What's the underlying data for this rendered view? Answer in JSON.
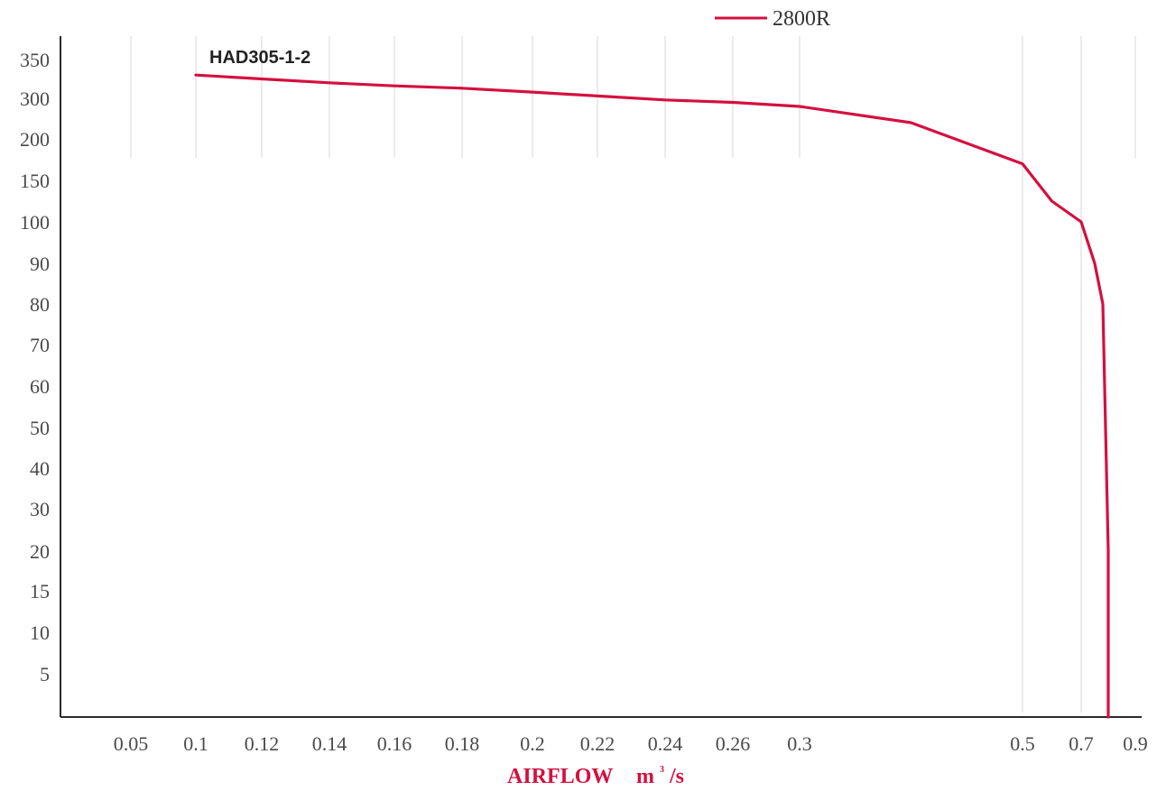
{
  "chart_data": {
    "type": "line",
    "title": "",
    "xlabel": "AIRFLOW",
    "xlabel_unit": "m",
    "xlabel_unit_suffix": "/s",
    "ylabel": "",
    "x_ticks": [
      "0.05",
      "0.1",
      "0.12",
      "0.14",
      "0.16",
      "0.18",
      "0.2",
      "0.22",
      "0.24",
      "0.26",
      "0.3",
      "0.5",
      "0.7",
      "0.9"
    ],
    "y_ticks": [
      "5",
      "10",
      "15",
      "20",
      "30",
      "40",
      "50",
      "60",
      "70",
      "80",
      "90",
      "100",
      "150",
      "200",
      "300",
      "350"
    ],
    "annotation": "HAD305-1-2",
    "grid": "vertical",
    "legend": "top-center",
    "series": [
      {
        "name": "2800R",
        "color": "#d4103f",
        "x": [
          0.1,
          0.12,
          0.14,
          0.16,
          0.18,
          0.2,
          0.22,
          0.24,
          0.26,
          0.3,
          0.4,
          0.5,
          0.6,
          0.7,
          0.75,
          0.78,
          0.79,
          0.8,
          0.8
        ],
        "y": [
          330,
          325,
          320,
          316,
          313,
          308,
          303,
          296,
          290,
          280,
          240,
          170,
          125,
          100,
          90,
          80,
          50,
          20,
          0
        ]
      }
    ]
  },
  "colors": {
    "curve": "#d4103f",
    "axis_label": "#d4103f"
  }
}
